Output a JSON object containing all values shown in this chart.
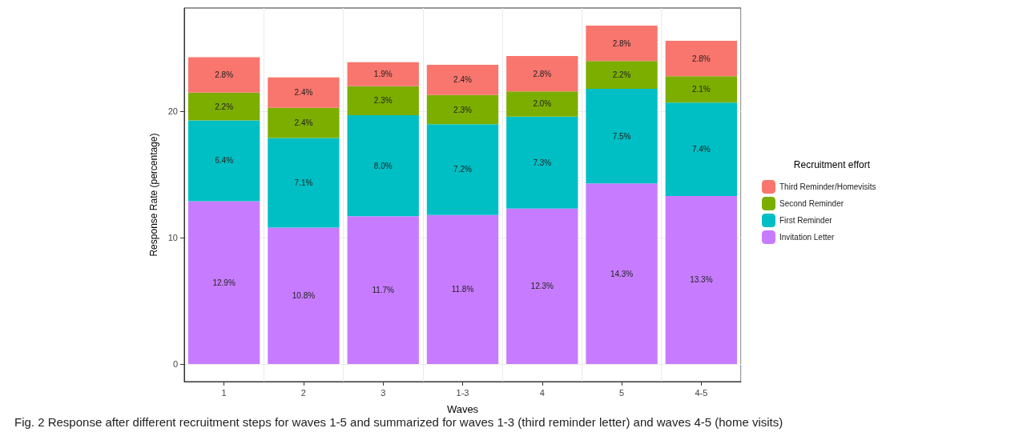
{
  "chart_data": {
    "type": "bar",
    "stacked": true,
    "xlabel": "Waves",
    "ylabel": "Response Rate (percentage)",
    "legend_title": "Recruitment effort",
    "legend": "right",
    "grid": true,
    "categories": [
      "1",
      "2",
      "3",
      "1-3",
      "4",
      "5",
      "4-5"
    ],
    "ylim": [
      -1.4,
      28.2
    ],
    "yticks": [
      0,
      10,
      20
    ],
    "series": [
      {
        "name": "Invitation Letter",
        "color": "#c77cff",
        "values": [
          12.9,
          10.8,
          11.7,
          11.8,
          12.3,
          14.3,
          13.3
        ],
        "value_labels": [
          "12.9%",
          "10.8%",
          "11.7%",
          "11.8%",
          "12.3%",
          "14.3%",
          "13.3%"
        ]
      },
      {
        "name": "First Reminder",
        "color": "#00bfc4",
        "values": [
          6.4,
          7.1,
          8.0,
          7.2,
          7.3,
          7.5,
          7.4
        ],
        "value_labels": [
          "6.4%",
          "7.1%",
          "8.0%",
          "7.2%",
          "7.3%",
          "7.5%",
          "7.4%"
        ]
      },
      {
        "name": "Second Reminder",
        "color": "#7cae00",
        "values": [
          2.2,
          2.4,
          2.3,
          2.3,
          2.0,
          2.2,
          2.1
        ],
        "value_labels": [
          "2.2%",
          "2.4%",
          "2.3%",
          "2.3%",
          "2.0%",
          "2.2%",
          "2.1%"
        ]
      },
      {
        "name": "Third Reminder/Homevisits",
        "color": "#f8766d",
        "values": [
          2.8,
          2.4,
          1.9,
          2.4,
          2.8,
          2.8,
          2.8
        ],
        "value_labels": [
          "2.8%",
          "2.4%",
          "1.9%",
          "2.4%",
          "2.8%",
          "2.8%",
          "2.8%"
        ]
      }
    ],
    "annotations": [
      "Fig. 2 Response after different recruitment steps for waves 1-5 and summarized for waves 1-3 (third reminder letter) and waves 4-5 (home visits)"
    ]
  }
}
